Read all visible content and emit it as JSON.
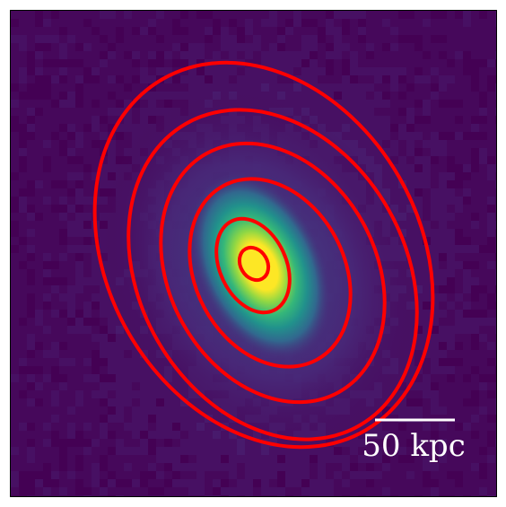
{
  "image": {
    "description_kind": "galaxy-pixel-map",
    "colormap": [
      "#440154",
      "#3b528b",
      "#21918c",
      "#5ec962",
      "#fde725"
    ],
    "background_color": "#46085b",
    "contour_color": "#ff0000",
    "contour_count": 6
  },
  "scale_bar": {
    "label": "50 kpc",
    "color": "#ffffff"
  }
}
